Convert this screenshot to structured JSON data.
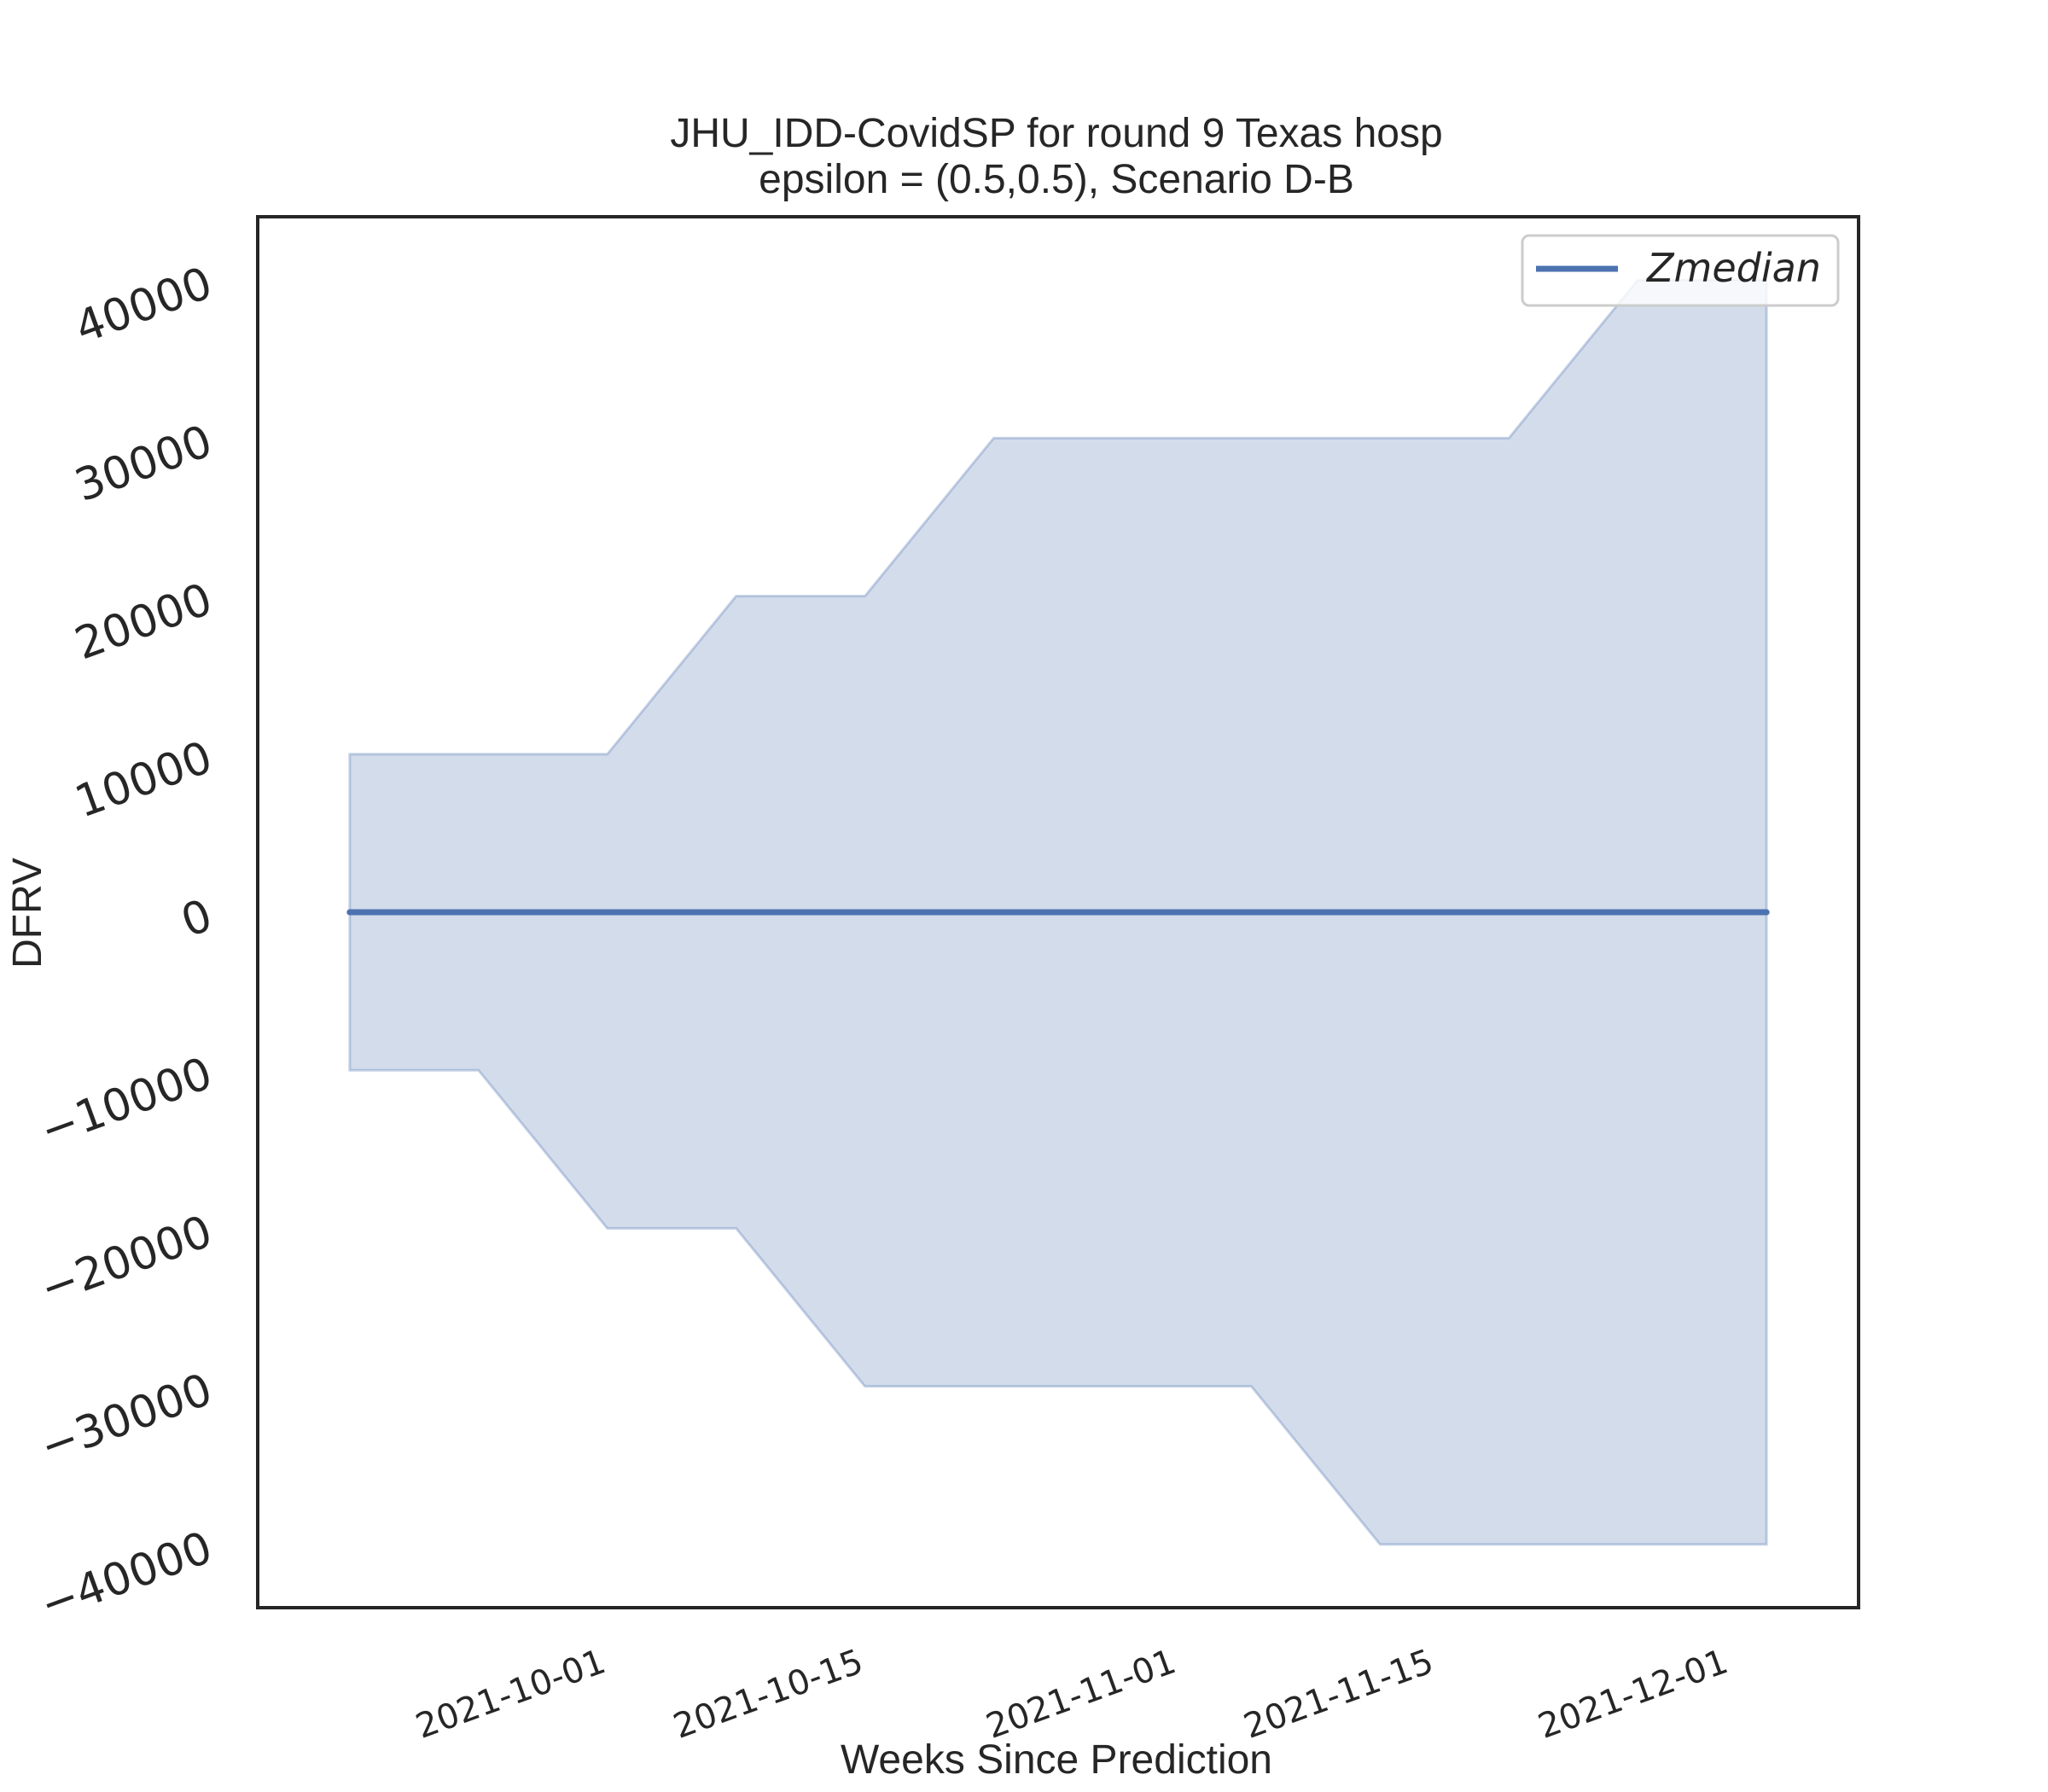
{
  "chart_data": {
    "type": "area",
    "title": "JHU_IDD-CovidSP for round 9 Texas  hosp",
    "subtitle": "epsilon = (0.5,0.5), Scenario D-B",
    "xlabel": "Weeks Since Prediction",
    "ylabel": "DFRV",
    "x": [
      "2021-09-18",
      "2021-09-25",
      "2021-10-02",
      "2021-10-09",
      "2021-10-16",
      "2021-10-23",
      "2021-10-30",
      "2021-11-06",
      "2021-11-13",
      "2021-11-20",
      "2021-11-27",
      "2021-12-04"
    ],
    "series": [
      {
        "name": "Zmedian",
        "values": [
          0,
          0,
          0,
          0,
          0,
          0,
          0,
          0,
          0,
          0,
          0,
          0
        ],
        "color": "#4c72b0"
      }
    ],
    "band": {
      "lower": [
        -10000,
        -10000,
        -20000,
        -20000,
        -30000,
        -30000,
        -30000,
        -30000,
        -40000,
        -40000,
        -40000,
        -40000
      ],
      "upper": [
        10000,
        10000,
        10000,
        20000,
        20000,
        30000,
        30000,
        30000,
        30000,
        30000,
        40000,
        40000
      ],
      "color": "#4c72b0",
      "opacity": 0.25
    },
    "ylim": [
      -44000,
      44000
    ],
    "xlim": [
      "2021-09-13",
      "2021-12-09"
    ],
    "yticks": [
      -40000,
      -30000,
      -20000,
      -10000,
      0,
      10000,
      20000,
      30000,
      40000
    ],
    "ytick_labels": [
      "−40000",
      "−30000",
      "−20000",
      "−10000",
      "0",
      "10000",
      "20000",
      "30000",
      "40000"
    ],
    "xticks": [
      "2021-10-01",
      "2021-10-15",
      "2021-11-01",
      "2021-11-15",
      "2021-12-01"
    ],
    "legend": {
      "entries": [
        "Zmedian"
      ],
      "position": "top-right"
    },
    "grid": false
  }
}
